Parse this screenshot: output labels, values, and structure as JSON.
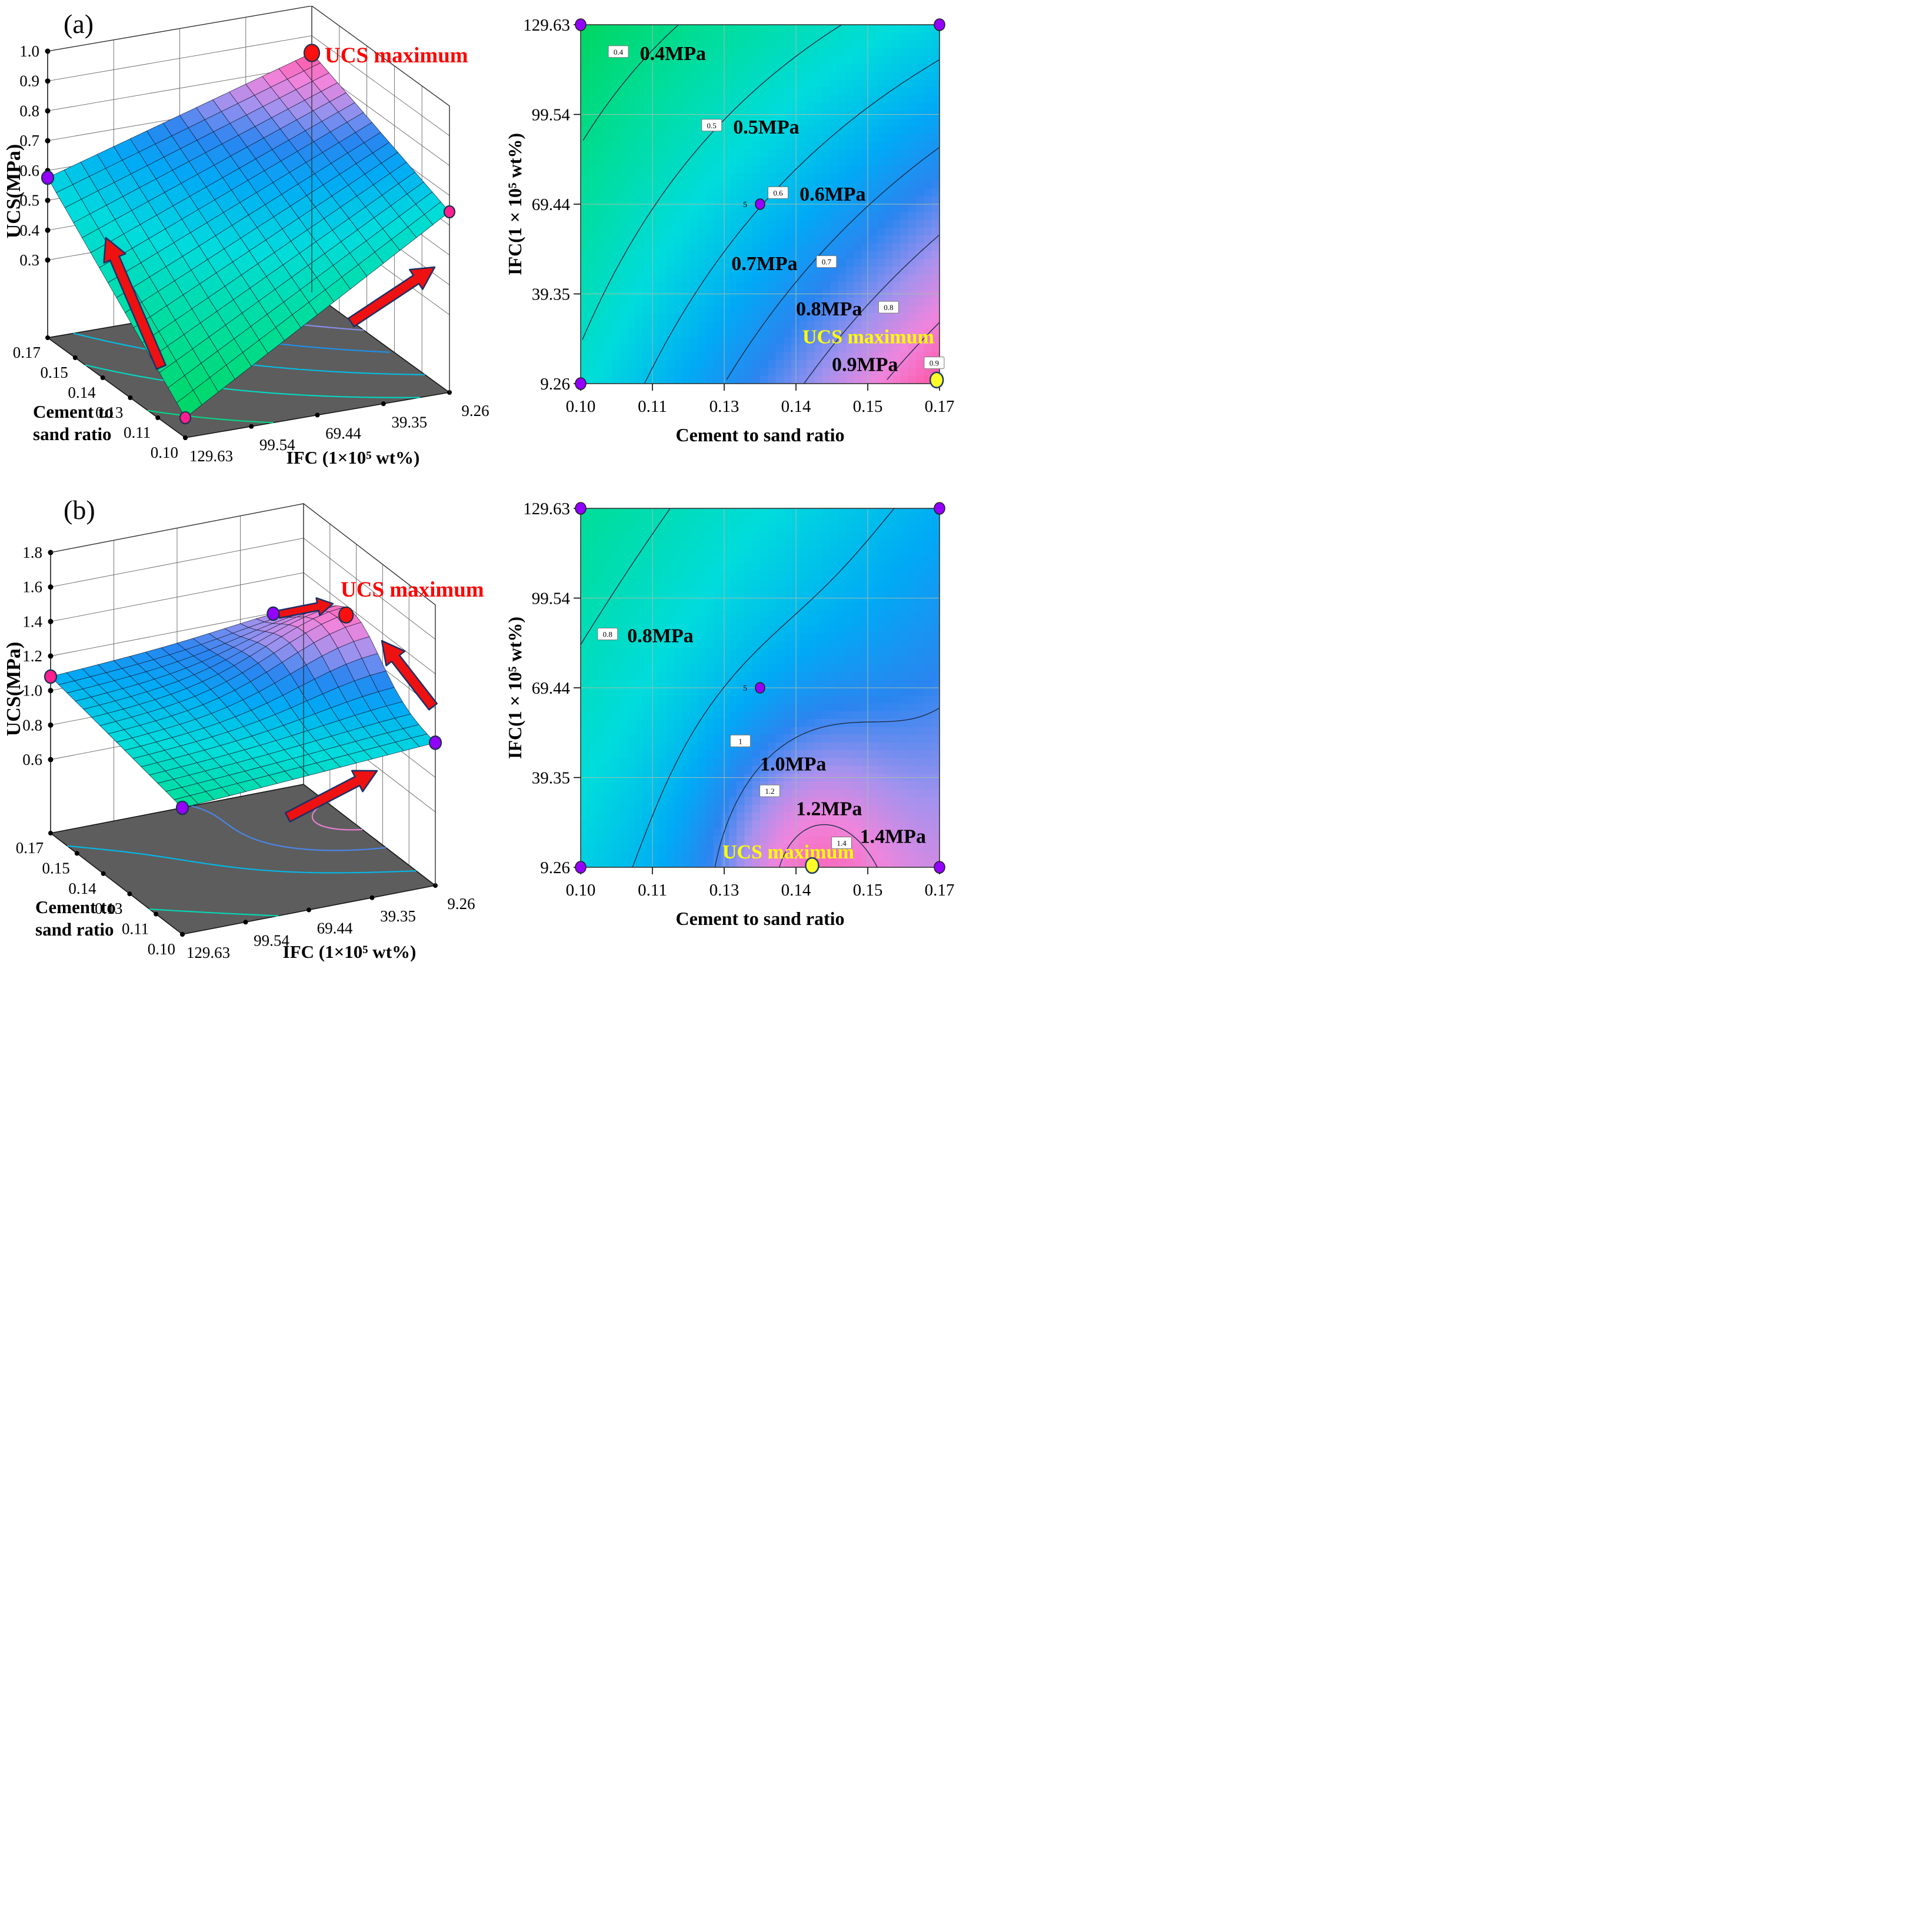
{
  "page": {
    "background": "#ffffff"
  },
  "colors": {
    "annotation_red": "#ff0000",
    "annotation_yellow": "#ffff00",
    "dot_purple": "#9400ff",
    "dot_magenta": "#ff1f8f",
    "dot_red": "#ff1010",
    "dot_yellow": "#fdfd2a",
    "floor_gray": "#5d5d5d",
    "arrow_red": "#ee1111",
    "arrow_outline": "#1a2f66",
    "contour_line": "#1c2e4a",
    "grid_line": "#9fbfae",
    "colormap_stops": [
      [
        0,
        "#00d348"
      ],
      [
        0.18,
        "#00dd9a"
      ],
      [
        0.34,
        "#00dcdc"
      ],
      [
        0.5,
        "#00aaf5"
      ],
      [
        0.62,
        "#2a85f0"
      ],
      [
        0.74,
        "#a392ee"
      ],
      [
        0.84,
        "#ef85dd"
      ],
      [
        0.93,
        "#fb5fb0"
      ],
      [
        1,
        "#fa2020"
      ]
    ]
  },
  "chart_data": [
    {
      "type": "surface3d",
      "panel": "a",
      "panel_label": "(a)",
      "z_axis": {
        "label": "UCS(MPa)",
        "ticks": [
          "1.0",
          "0.9",
          "0.8",
          "0.7",
          "0.6",
          "0.5",
          "0.4",
          "0.3"
        ]
      },
      "x_axis": {
        "label_lines": [
          "Cement to",
          "sand ratio"
        ],
        "ticks": [
          "0.17",
          "0.15",
          "0.14",
          "0.13",
          "0.11",
          "0.10"
        ]
      },
      "y_axis": {
        "label": "IFC  (1×10⁵ wt%)",
        "ticks": [
          "129.63",
          "99.54",
          "69.44",
          "39.35",
          "9.26"
        ]
      },
      "surface": {
        "corner_values": {
          "x010_y926": 0.52,
          "x017_y926": 0.97,
          "x010_y12963": 0.34,
          "x017_y12963": 0.56
        },
        "bump": null,
        "color_range": [
          0.3,
          1.0
        ]
      },
      "floor_contour_levels": [
        0.4,
        0.5,
        0.6,
        0.7,
        0.8
      ],
      "annotation": {
        "text": "UCS maximum",
        "color": "#ff0000"
      },
      "visual_heights": {
        "H00": 307,
        "H10": 407,
        "H01": 34,
        "H11": 272,
        "bumpH": 0
      }
    },
    {
      "type": "contour",
      "panel": "a",
      "x_axis": {
        "label": "Cement to sand ratio",
        "ticks": [
          "0.10",
          "0.11",
          "0.13",
          "0.14",
          "0.15",
          "0.17"
        ]
      },
      "y_axis": {
        "label": "IFC(1 × 10⁵ wt%)",
        "ticks": [
          "9.26",
          "39.35",
          "69.44",
          "99.54",
          "129.63"
        ]
      },
      "field": {
        "corner_values": {
          "x010_y926": 0.52,
          "x017_y926": 0.97,
          "x010_y12963": 0.34,
          "x017_y12963": 0.56
        },
        "bump": null,
        "color_range": [
          0.3,
          1.0
        ]
      },
      "levels": [
        {
          "value": 0.4,
          "tag": "0.4",
          "label": "0.4MPa",
          "box": [
            0.105,
            0.075
          ],
          "text": [
            0.165,
            0.098
          ]
        },
        {
          "value": 0.5,
          "tag": "0.5",
          "label": "0.5MPa",
          "box": [
            0.365,
            0.28
          ],
          "text": [
            0.425,
            0.303
          ]
        },
        {
          "value": 0.6,
          "tag": "0.6",
          "label": "0.6MPa",
          "box": [
            0.55,
            0.468
          ],
          "text": [
            0.61,
            0.49
          ]
        },
        {
          "value": 0.7,
          "tag": "0.7",
          "label": "0.7MPa",
          "box": [
            0.685,
            0.66
          ],
          "text": [
            0.42,
            0.684
          ]
        },
        {
          "value": 0.8,
          "tag": "0.8",
          "label": "0.8MPa",
          "box": [
            0.858,
            0.787
          ],
          "text": [
            0.6,
            0.81
          ]
        },
        {
          "value": 0.9,
          "tag": "0.9",
          "label": "0.9MPa",
          "box": [
            0.985,
            0.942
          ],
          "text": [
            0.7,
            0.965
          ]
        }
      ],
      "annotation": {
        "text": "UCS maximum",
        "color": "#ffff00",
        "frac": [
          0.618,
          0.888
        ]
      },
      "max_dot": {
        "frac": [
          0.992,
          0.99
        ],
        "color": "yellow"
      },
      "corner_dots": [
        {
          "frac": [
            0,
            0
          ],
          "color": "purple"
        },
        {
          "frac": [
            1,
            0
          ],
          "color": "purple"
        },
        {
          "frac": [
            0,
            1
          ],
          "color": "purple"
        }
      ],
      "center_dot": {
        "frac": [
          0.5,
          0.5
        ],
        "count": "5",
        "color": "purple"
      }
    },
    {
      "type": "surface3d",
      "panel": "b",
      "panel_label": "(b)",
      "z_axis": {
        "label": "UCS(MPa)",
        "ticks": [
          "1.8",
          "1.6",
          "1.4",
          "1.2",
          "1.0",
          "0.8",
          "0.6"
        ]
      },
      "x_axis": {
        "label_lines": [
          "Cement to",
          "sand ratio"
        ],
        "ticks": [
          "0.17",
          "0.15",
          "0.14",
          "0.13",
          "0.11",
          "0.10"
        ]
      },
      "y_axis": {
        "label": "IFC  (1×10⁵ wt%)",
        "ticks": [
          "129.63",
          "99.54",
          "69.44",
          "39.35",
          "9.26"
        ]
      },
      "surface": {
        "corner_values": {
          "x010_y926": 0.93,
          "x017_y926": 1.3,
          "x010_y12963": 0.72,
          "x017_y12963": 1.04
        },
        "bump": {
          "A": 0.28,
          "u0": 0.62,
          "v0": 0,
          "su": 0.2,
          "sv": 0.3
        },
        "color_range": [
          0.55,
          1.55
        ]
      },
      "floor_contour_levels": [
        0.8,
        1.0,
        1.2,
        1.4
      ],
      "annotation": {
        "text": "UCS maximum",
        "color": "#ff0000"
      },
      "visual_heights": {
        "H00": 242,
        "H10": 290,
        "H01": 215,
        "H11": 266,
        "bumpH": 85
      }
    },
    {
      "type": "contour",
      "panel": "b",
      "x_axis": {
        "label": "Cement to sand ratio",
        "ticks": [
          "0.10",
          "0.11",
          "0.13",
          "0.14",
          "0.15",
          "0.17"
        ]
      },
      "y_axis": {
        "label": "IFC(1 × 10⁵ wt%)",
        "ticks": [
          "9.26",
          "39.35",
          "69.44",
          "99.54",
          "129.63"
        ]
      },
      "field": {
        "corner_values": {
          "x010_y926": 0.93,
          "x017_y926": 1.3,
          "x010_y12963": 0.72,
          "x017_y12963": 1.04
        },
        "bump": {
          "A": 0.28,
          "u0": 0.62,
          "v0": 0,
          "su": 0.2,
          "sv": 0.3
        },
        "color_range": [
          0.55,
          1.55
        ]
      },
      "levels": [
        {
          "value": 0.8,
          "tag": "0.8",
          "label": "0.8MPa",
          "box": [
            0.075,
            0.35
          ],
          "text": [
            0.13,
            0.373
          ]
        },
        {
          "value": 1.0,
          "tag": "1",
          "label": "1.0MPa",
          "box": [
            0.445,
            0.648
          ],
          "text": [
            0.5,
            0.73
          ]
        },
        {
          "value": 1.2,
          "tag": "1.2",
          "label": "1.2MPa",
          "box": [
            0.527,
            0.787
          ],
          "text": [
            0.6,
            0.855
          ]
        },
        {
          "value": 1.4,
          "tag": "1.4",
          "label": "1.4MPa",
          "box": [
            0.727,
            0.932
          ],
          "text": [
            0.778,
            0.932
          ]
        }
      ],
      "annotation": {
        "text": "UCS maximum",
        "color": "#ffff00",
        "frac": [
          0.395,
          0.975
        ]
      },
      "max_dot": {
        "frac": [
          0.645,
          0.995
        ],
        "color": "yellow"
      },
      "corner_dots": [
        {
          "frac": [
            0,
            0
          ],
          "color": "purple"
        },
        {
          "frac": [
            1,
            0
          ],
          "color": "purple"
        },
        {
          "frac": [
            0,
            1
          ],
          "color": "purple"
        },
        {
          "frac": [
            1,
            1
          ],
          "color": "purple"
        }
      ],
      "center_dot": {
        "frac": [
          0.5,
          0.5
        ],
        "count": "5",
        "color": "purple"
      }
    }
  ]
}
